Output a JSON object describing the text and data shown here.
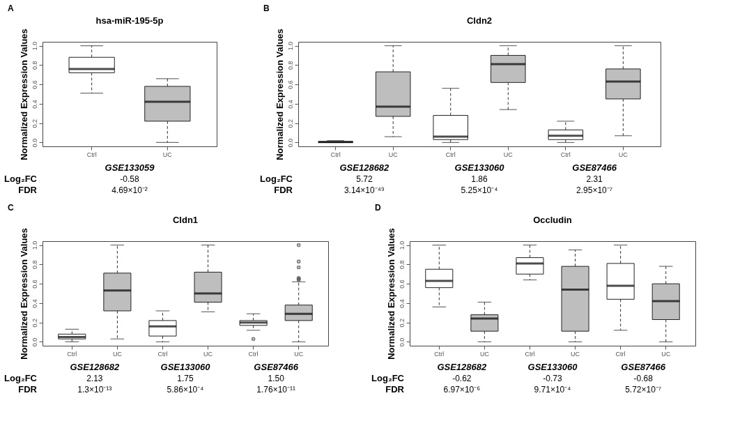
{
  "chart_data": [
    {
      "type": "box",
      "title": "hsa-miR-195-5p",
      "ylabel": "Normalized Expression Values",
      "categories": [
        "Ctrl",
        "UC"
      ],
      "colors": [
        "#ffffff",
        "#bebebe"
      ],
      "boxes": [
        {
          "low": 0.51,
          "q1": 0.72,
          "median": 0.76,
          "q3": 0.88,
          "high": 1.0
        },
        {
          "low": 0.0,
          "q1": 0.22,
          "median": 0.42,
          "q3": 0.58,
          "high": 0.66
        }
      ],
      "ylim": [
        -0.04,
        1.04
      ],
      "yticks": [
        {
          "value": 0,
          "label": "0.0"
        },
        {
          "value": 0.2,
          "label": "0.2"
        },
        {
          "value": 0.4,
          "label": "0.4"
        },
        {
          "value": 0.6,
          "label": "0.6"
        },
        {
          "value": 0.8,
          "label": "0.8"
        },
        {
          "value": 1,
          "label": "1.0"
        }
      ],
      "annotations": [
        "A",
        "Log₂FC",
        "FDR",
        "GSE133059",
        "-0.58",
        "4.69×10⁻²"
      ]
    },
    {
      "type": "box",
      "title": "Cldn2",
      "ylabel": "Normalized Expression Values",
      "categories": [
        "Ctrl",
        "UC",
        "Ctrl",
        "UC",
        "Ctrl",
        "UC"
      ],
      "colors": [
        "#ffffff",
        "#bebebe",
        "#ffffff",
        "#bebebe",
        "#ffffff",
        "#bebebe"
      ],
      "boxes": [
        {
          "low": 0.0,
          "q1": 0.0,
          "median": 0.005,
          "q3": 0.01,
          "high": 0.02
        },
        {
          "low": 0.06,
          "q1": 0.27,
          "median": 0.37,
          "q3": 0.73,
          "high": 1.0
        },
        {
          "low": 0.0,
          "q1": 0.03,
          "median": 0.06,
          "q3": 0.28,
          "high": 0.56
        },
        {
          "low": 0.34,
          "q1": 0.62,
          "median": 0.81,
          "q3": 0.9,
          "high": 1.0
        },
        {
          "low": 0.0,
          "q1": 0.03,
          "median": 0.07,
          "q3": 0.13,
          "high": 0.22
        },
        {
          "low": 0.07,
          "q1": 0.45,
          "median": 0.63,
          "q3": 0.76,
          "high": 1.0
        }
      ],
      "ylim": [
        -0.04,
        1.04
      ],
      "yticks": [
        {
          "value": 0,
          "label": "0.0"
        },
        {
          "value": 0.2,
          "label": "0.2"
        },
        {
          "value": 0.4,
          "label": "0.4"
        },
        {
          "value": 0.6,
          "label": "0.6"
        },
        {
          "value": 0.8,
          "label": "0.8"
        },
        {
          "value": 1,
          "label": "1.0"
        }
      ],
      "annotations": [
        "B",
        "Log₂FC",
        "FDR",
        "GSE128682",
        "5.72",
        "3.14×10⁻⁴⁹",
        "GSE133060",
        "1.86",
        "5.25×10⁻⁴",
        "GSE87466",
        "2.31",
        "2.95×10⁻⁷"
      ]
    },
    {
      "type": "box",
      "title": "Cldn1",
      "ylabel": "Normalized Expression Values",
      "categories": [
        "Ctrl",
        "UC",
        "Ctrl",
        "UC",
        "Ctrl",
        "UC"
      ],
      "colors": [
        "#ffffff",
        "#bebebe",
        "#ffffff",
        "#bebebe",
        "#ffffff",
        "#bebebe"
      ],
      "boxes": [
        {
          "low": 0.0,
          "q1": 0.03,
          "median": 0.05,
          "q3": 0.08,
          "high": 0.13
        },
        {
          "low": 0.03,
          "q1": 0.32,
          "median": 0.53,
          "q3": 0.71,
          "high": 1.0
        },
        {
          "low": 0.0,
          "q1": 0.06,
          "median": 0.16,
          "q3": 0.22,
          "high": 0.32
        },
        {
          "low": 0.31,
          "q1": 0.41,
          "median": 0.5,
          "q3": 0.72,
          "high": 1.0
        },
        {
          "low": 0.12,
          "q1": 0.17,
          "median": 0.2,
          "q3": 0.22,
          "high": 0.29,
          "outliers": [
            0.03
          ]
        },
        {
          "low": 0.0,
          "q1": 0.22,
          "median": 0.29,
          "q3": 0.38,
          "high": 0.62,
          "outliers": [
            1.0,
            0.83,
            0.77,
            0.66,
            0.65,
            0.64
          ]
        }
      ],
      "ylim": [
        -0.04,
        1.04
      ],
      "yticks": [
        {
          "value": 0,
          "label": "0.0"
        },
        {
          "value": 0.2,
          "label": "0.2"
        },
        {
          "value": 0.4,
          "label": "0.4"
        },
        {
          "value": 0.6,
          "label": "0.6"
        },
        {
          "value": 0.8,
          "label": "0.8"
        },
        {
          "value": 1,
          "label": "1.0"
        }
      ],
      "annotations": [
        "C",
        "Log₂FC",
        "FDR",
        "GSE128682",
        "2.13",
        "1.3×10⁻¹³",
        "GSE133060",
        "1.75",
        "5.86×10⁻⁴",
        "GSE87466",
        "1.50",
        "1.76×10⁻¹¹"
      ]
    },
    {
      "type": "box",
      "title": "Occludin",
      "ylabel": "Normalized Expression Values",
      "categories": [
        "Ctrl",
        "UC",
        "Ctrl",
        "UC",
        "Ctrl",
        "UC"
      ],
      "colors": [
        "#ffffff",
        "#bebebe",
        "#ffffff",
        "#bebebe",
        "#ffffff",
        "#bebebe"
      ],
      "boxes": [
        {
          "low": 0.36,
          "q1": 0.56,
          "median": 0.63,
          "q3": 0.75,
          "high": 1.0
        },
        {
          "low": 0.0,
          "q1": 0.11,
          "median": 0.24,
          "q3": 0.28,
          "high": 0.41
        },
        {
          "low": 0.64,
          "q1": 0.7,
          "median": 0.81,
          "q3": 0.87,
          "high": 1.0
        },
        {
          "low": 0.0,
          "q1": 0.11,
          "median": 0.54,
          "q3": 0.78,
          "high": 0.95
        },
        {
          "low": 0.12,
          "q1": 0.44,
          "median": 0.58,
          "q3": 0.81,
          "high": 1.0
        },
        {
          "low": 0.0,
          "q1": 0.23,
          "median": 0.42,
          "q3": 0.6,
          "high": 0.78
        }
      ],
      "ylim": [
        -0.04,
        1.04
      ],
      "yticks": [
        {
          "value": 0,
          "label": "0.0"
        },
        {
          "value": 0.2,
          "label": "0.2"
        },
        {
          "value": 0.4,
          "label": "0.4"
        },
        {
          "value": 0.6,
          "label": "0.6"
        },
        {
          "value": 0.8,
          "label": "0.8"
        },
        {
          "value": 1,
          "label": "1.0"
        }
      ],
      "annotations": [
        "D",
        "Log₂FC",
        "FDR",
        "GSE128682",
        "-0.62",
        "6.97×10⁻⁶",
        "GSE133060",
        "-0.73",
        "9.71×10⁻⁴",
        "GSE87466",
        "-0.68",
        "5.72×10⁻⁷"
      ]
    }
  ]
}
